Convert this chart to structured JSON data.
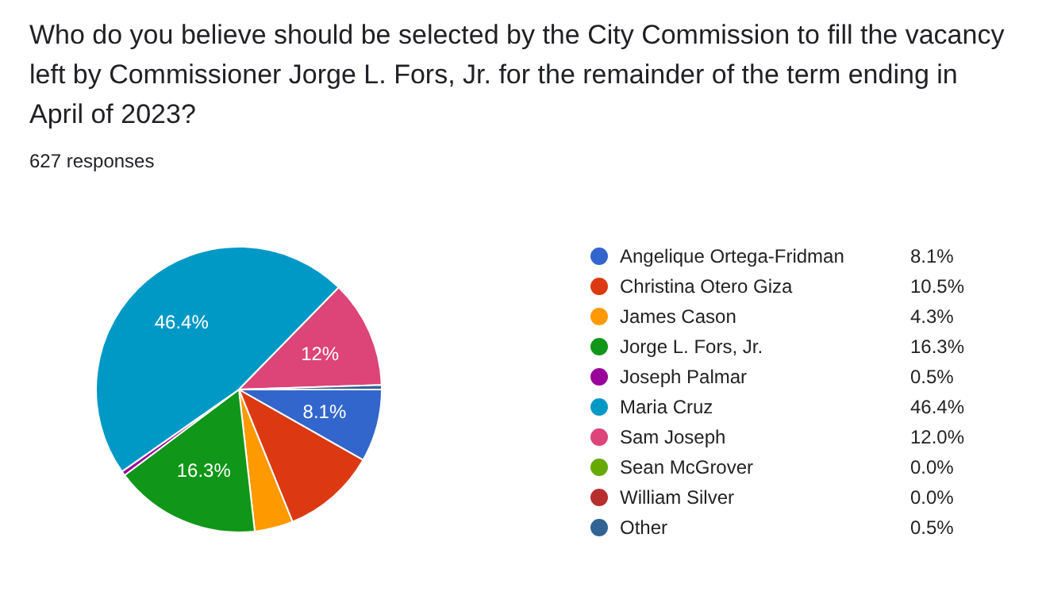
{
  "chart_data": {
    "type": "pie",
    "title": "Who do you believe should be selected by the City Commission to fill the vacancy left by Commissioner Jorge L. Fors, Jr. for the remainder of the term ending in April of 2023?",
    "subtitle": "627  responses",
    "categories": [
      "Angelique Ortega-Fridman",
      "Christina Otero Giza",
      "James Cason",
      "Jorge L. Fors, Jr.",
      "Joseph Palmar",
      "Maria Cruz",
      "Sam Joseph",
      "Sean McGrover",
      "William Silver",
      "Other"
    ],
    "values": [
      8.1,
      10.5,
      4.3,
      16.3,
      0.5,
      46.4,
      12.0,
      0.0,
      0.0,
      0.5
    ],
    "colors": [
      "#3366cc",
      "#dc3912",
      "#ff9900",
      "#109618",
      "#990099",
      "#0099c6",
      "#dd4477",
      "#66aa00",
      "#b82e2e",
      "#316395"
    ],
    "value_labels": [
      "8.1%",
      "10.5%",
      "4.3%",
      "16.3%",
      "0.5%",
      "46.4%",
      "12.0%",
      "0.0%",
      "0.0%",
      "0.5%"
    ],
    "annotations": [
      {
        "text": "8.1%",
        "x": "Angelique Ortega-Fridman"
      },
      {
        "text": "16.3%",
        "x": "Jorge L. Fors, Jr."
      },
      {
        "text": "46.4%",
        "x": "Maria Cruz"
      },
      {
        "text": "12%",
        "x": "Sam Joseph"
      }
    ],
    "legend": "right"
  }
}
